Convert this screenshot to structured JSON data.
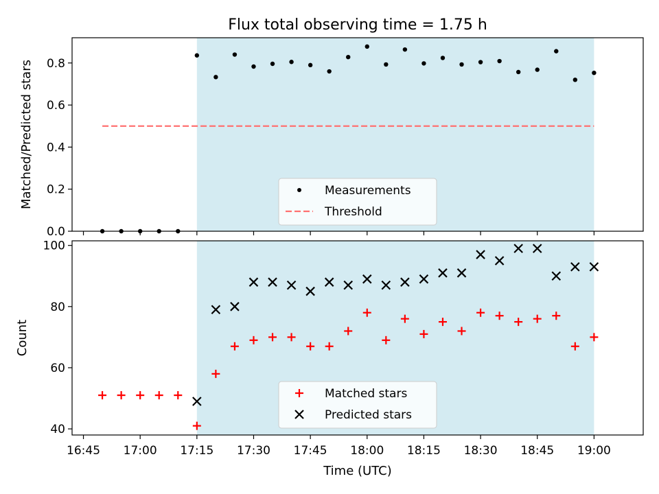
{
  "title": "Flux total observing time = 1.75 h",
  "xlabel": "Time (UTC)",
  "x_ticks": [
    "16:45",
    "17:00",
    "17:15",
    "17:30",
    "17:45",
    "18:00",
    "18:15",
    "18:30",
    "18:45",
    "19:00"
  ],
  "colors": {
    "observing_span": "#add8e6",
    "measurements": "#000000",
    "threshold": "#ff7070",
    "matched": "#ff0000",
    "predicted": "#000000"
  },
  "chart_data": [
    {
      "type": "scatter",
      "panel": "top",
      "ylabel": "Matched/Predicted stars",
      "ylim": [
        0,
        0.92
      ],
      "y_ticks": [
        "0.0",
        "0.2",
        "0.4",
        "0.6",
        "0.8"
      ],
      "xlim": [
        "16:42",
        "19:13"
      ],
      "shaded_span": [
        "17:15",
        "19:00"
      ],
      "legend_placement": "lower-center",
      "series": [
        {
          "name": "Measurements",
          "marker": "dot",
          "x": [
            "16:50",
            "16:55",
            "17:00",
            "17:05",
            "17:10",
            "17:15",
            "17:20",
            "17:25",
            "17:30",
            "17:35",
            "17:40",
            "17:45",
            "17:50",
            "17:55",
            "18:00",
            "18:05",
            "18:10",
            "18:15",
            "18:20",
            "18:25",
            "18:30",
            "18:35",
            "18:40",
            "18:45",
            "18:50",
            "18:55",
            "19:00"
          ],
          "y": [
            0,
            0,
            0,
            0,
            0,
            0.836,
            0.733,
            0.84,
            0.783,
            0.796,
            0.805,
            0.79,
            0.76,
            0.828,
            0.878,
            0.793,
            0.864,
            0.798,
            0.824,
            0.793,
            0.804,
            0.809,
            0.757,
            0.768,
            0.856,
            0.72,
            0.753
          ]
        },
        {
          "name": "Threshold",
          "line": "dashed",
          "x": [
            "16:50",
            "19:00"
          ],
          "y": [
            0.5,
            0.5
          ]
        }
      ]
    },
    {
      "type": "scatter",
      "panel": "bottom",
      "ylabel": "Count",
      "ylim": [
        38,
        101.5
      ],
      "y_ticks": [
        "40",
        "60",
        "80",
        "100"
      ],
      "xlim": [
        "16:42",
        "19:13"
      ],
      "shaded_span": [
        "17:15",
        "19:00"
      ],
      "legend_placement": "lower-center",
      "series": [
        {
          "name": "Matched stars",
          "marker": "plus",
          "x": [
            "16:50",
            "16:55",
            "17:00",
            "17:05",
            "17:10",
            "17:15",
            "17:20",
            "17:25",
            "17:30",
            "17:35",
            "17:40",
            "17:45",
            "17:50",
            "17:55",
            "18:00",
            "18:05",
            "18:10",
            "18:15",
            "18:20",
            "18:25",
            "18:30",
            "18:35",
            "18:40",
            "18:45",
            "18:50",
            "18:55",
            "19:00"
          ],
          "y": [
            51,
            51,
            51,
            51,
            51,
            41,
            58,
            67,
            69,
            70,
            70,
            67,
            67,
            72,
            78,
            69,
            76,
            71,
            75,
            72,
            78,
            77,
            75,
            76,
            77,
            67,
            70
          ]
        },
        {
          "name": "Predicted stars",
          "marker": "x",
          "x": [
            "17:15",
            "17:20",
            "17:25",
            "17:30",
            "17:35",
            "17:40",
            "17:45",
            "17:50",
            "17:55",
            "18:00",
            "18:05",
            "18:10",
            "18:15",
            "18:20",
            "18:25",
            "18:30",
            "18:35",
            "18:40",
            "18:45",
            "18:50",
            "18:55",
            "19:00"
          ],
          "y": [
            49,
            79,
            80,
            88,
            88,
            87,
            85,
            88,
            87,
            89,
            87,
            88,
            89,
            91,
            91,
            97,
            95,
            99,
            99,
            90,
            93,
            93
          ]
        }
      ]
    }
  ]
}
